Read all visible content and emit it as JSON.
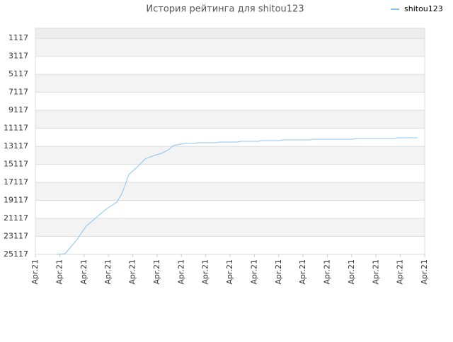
{
  "chart_data": {
    "type": "line",
    "title": "История рейтинга для shitou123",
    "x": [
      0.87,
      1.22,
      1.69,
      2.09,
      2.53,
      2.91,
      3.35,
      3.55,
      3.69,
      3.84,
      4.07,
      4.28,
      4.51,
      4.8,
      5.18,
      5.47,
      5.67,
      6.11,
      6.55,
      6.69,
      7.42,
      7.56,
      8.29,
      8.44,
      9.16,
      9.31,
      10.04,
      10.18,
      11.29,
      11.4,
      13.03,
      13.15,
      14.78,
      14.89,
      15.71
    ],
    "series": [
      {
        "name": "shitou123",
        "color": "#88c4f0",
        "values": [
          25117,
          25039,
          23547,
          21977,
          20957,
          20094,
          19309,
          18367,
          17425,
          16248,
          15698,
          15149,
          14521,
          14207,
          13893,
          13500,
          13029,
          12794,
          12794,
          12715,
          12715,
          12637,
          12637,
          12558,
          12558,
          12480,
          12480,
          12401,
          12401,
          12323,
          12323,
          12244,
          12244,
          12166,
          12166
        ]
      }
    ],
    "xlim": [
      0,
      16
    ],
    "xticks": [
      {
        "value": 0,
        "label": "Apr.21"
      },
      {
        "value": 1,
        "label": "Apr.21"
      },
      {
        "value": 2,
        "label": "Apr.21"
      },
      {
        "value": 3,
        "label": "Apr.21"
      },
      {
        "value": 4,
        "label": "Apr.21"
      },
      {
        "value": 5,
        "label": "Apr.21"
      },
      {
        "value": 6,
        "label": "Apr.21"
      },
      {
        "value": 7,
        "label": "Apr.21"
      },
      {
        "value": 8,
        "label": "Apr.21"
      },
      {
        "value": 9,
        "label": "Apr.21"
      },
      {
        "value": 10,
        "label": "Apr.21"
      },
      {
        "value": 11,
        "label": "Apr.21"
      },
      {
        "value": 12,
        "label": "Apr.21"
      },
      {
        "value": 13,
        "label": "Apr.21"
      },
      {
        "value": 14,
        "label": "Apr.21"
      },
      {
        "value": 15,
        "label": "Apr.21"
      },
      {
        "value": 16,
        "label": "Apr.21"
      }
    ],
    "ylim": [
      25117,
      0
    ],
    "yticks": [
      1117,
      3117,
      5117,
      7117,
      9117,
      11117,
      13117,
      15117,
      17117,
      19117,
      21117,
      23117,
      25117
    ],
    "grid": true,
    "legend": "top-right"
  }
}
